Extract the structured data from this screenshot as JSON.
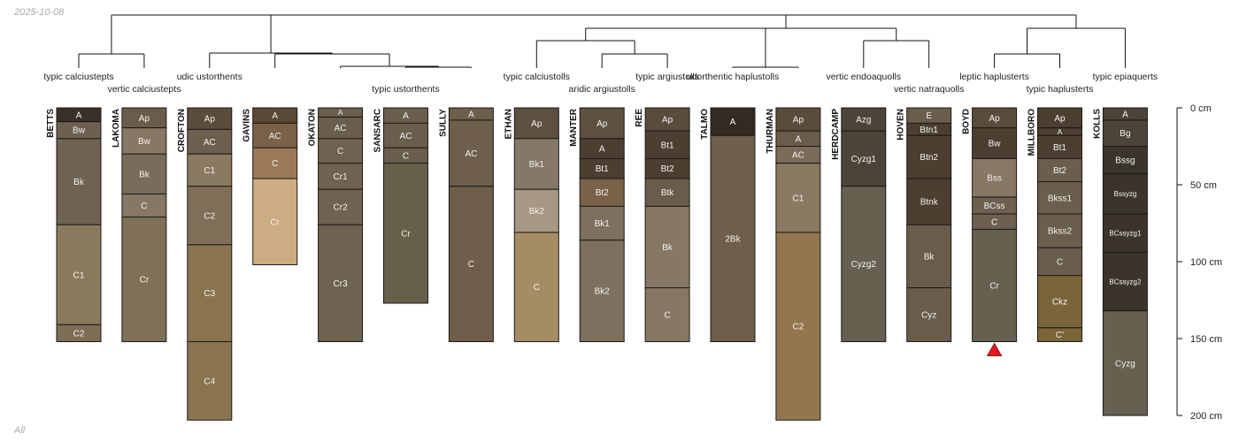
{
  "header": {
    "date": "2025-10-08"
  },
  "footer": {
    "label": "All"
  },
  "depth_axis": {
    "unit": "cm",
    "max": 200,
    "ticks": [
      {
        "value": 0,
        "label": "0 cm"
      },
      {
        "value": 50,
        "label": "50 cm"
      },
      {
        "value": 100,
        "label": "100 cm"
      },
      {
        "value": 150,
        "label": "150 cm"
      },
      {
        "value": 200,
        "label": "200 cm"
      }
    ]
  },
  "profiles": [
    {
      "name": "BETTS",
      "horizons": [
        {
          "name": "A",
          "top": 0,
          "bottom": 9,
          "color": "#3a3027"
        },
        {
          "name": "Bw",
          "top": 9,
          "bottom": 20,
          "color": "#6e6050"
        },
        {
          "name": "Bk",
          "top": 20,
          "bottom": 76,
          "color": "#6e6250"
        },
        {
          "name": "C1",
          "top": 76,
          "bottom": 141,
          "color": "#8a7a5e"
        },
        {
          "name": "C2",
          "top": 141,
          "bottom": 152,
          "color": "#7e6e55"
        }
      ]
    },
    {
      "name": "LAKOMA",
      "horizons": [
        {
          "name": "Ap",
          "top": 0,
          "bottom": 13,
          "color": "#6a5c4a"
        },
        {
          "name": "Bw",
          "top": 13,
          "bottom": 30,
          "color": "#867865"
        },
        {
          "name": "Bk",
          "top": 30,
          "bottom": 56,
          "color": "#7a6c5a"
        },
        {
          "name": "C",
          "top": 56,
          "bottom": 71,
          "color": "#867865"
        },
        {
          "name": "Cr",
          "top": 71,
          "bottom": 152,
          "color": "#807058"
        }
      ]
    },
    {
      "name": "CROFTON",
      "horizons": [
        {
          "name": "Ap",
          "top": 0,
          "bottom": 14,
          "color": "#5a4c3c"
        },
        {
          "name": "AC",
          "top": 14,
          "bottom": 30,
          "color": "#6e604e"
        },
        {
          "name": "C1",
          "top": 30,
          "bottom": 51,
          "color": "#8a7a60"
        },
        {
          "name": "C2",
          "top": 51,
          "bottom": 89,
          "color": "#806e58"
        },
        {
          "name": "C3",
          "top": 89,
          "bottom": 152,
          "color": "#8a7450"
        },
        {
          "name": "C4",
          "top": 152,
          "bottom": 203,
          "color": "#8a7450"
        }
      ]
    },
    {
      "name": "GAVINS",
      "horizons": [
        {
          "name": "A",
          "top": 0,
          "bottom": 10,
          "color": "#5a4834"
        },
        {
          "name": "AC",
          "top": 10,
          "bottom": 26,
          "color": "#7a6248"
        },
        {
          "name": "C",
          "top": 26,
          "bottom": 46,
          "color": "#9a7a58"
        },
        {
          "name": "Cr",
          "top": 46,
          "bottom": 102,
          "color": "#ccac82"
        }
      ]
    },
    {
      "name": "OKATON",
      "horizons": [
        {
          "name": "A",
          "top": 0,
          "bottom": 6,
          "color": "#6a5e4e"
        },
        {
          "name": "AC",
          "top": 6,
          "bottom": 20,
          "color": "#6a5e4e"
        },
        {
          "name": "C",
          "top": 20,
          "bottom": 36,
          "color": "#6e6250"
        },
        {
          "name": "Cr1",
          "top": 36,
          "bottom": 53,
          "color": "#6e6250"
        },
        {
          "name": "Cr2",
          "top": 53,
          "bottom": 76,
          "color": "#6e6250"
        },
        {
          "name": "Cr3",
          "top": 76,
          "bottom": 152,
          "color": "#6e6250"
        }
      ]
    },
    {
      "name": "SANSARC",
      "horizons": [
        {
          "name": "A",
          "top": 0,
          "bottom": 10,
          "color": "#6a5e4c"
        },
        {
          "name": "AC",
          "top": 10,
          "bottom": 26,
          "color": "#6a5e4c"
        },
        {
          "name": "C",
          "top": 26,
          "bottom": 36,
          "color": "#6a5e4c"
        },
        {
          "name": "Cr",
          "top": 36,
          "bottom": 127,
          "color": "#666048"
        }
      ]
    },
    {
      "name": "SULLY",
      "horizons": [
        {
          "name": "A",
          "top": 0,
          "bottom": 8,
          "color": "#6e5e4c"
        },
        {
          "name": "AC",
          "top": 8,
          "bottom": 51,
          "color": "#6e5e4c"
        },
        {
          "name": "C",
          "top": 51,
          "bottom": 152,
          "color": "#6e5e4a"
        }
      ]
    },
    {
      "name": "ETHAN",
      "horizons": [
        {
          "name": "Ap",
          "top": 0,
          "bottom": 20,
          "color": "#5e5040"
        },
        {
          "name": "Bk1",
          "top": 20,
          "bottom": 53,
          "color": "#867866"
        },
        {
          "name": "Bk2",
          "top": 53,
          "bottom": 81,
          "color": "#a69882"
        },
        {
          "name": "C",
          "top": 81,
          "bottom": 152,
          "color": "#a68c64"
        }
      ]
    },
    {
      "name": "MANTER",
      "horizons": [
        {
          "name": "Ap",
          "top": 0,
          "bottom": 20,
          "color": "#5e5040"
        },
        {
          "name": "A",
          "top": 20,
          "bottom": 33,
          "color": "#4c3e30"
        },
        {
          "name": "Bt1",
          "top": 33,
          "bottom": 46,
          "color": "#4c3e30"
        },
        {
          "name": "Bt2",
          "top": 46,
          "bottom": 64,
          "color": "#7a6248"
        },
        {
          "name": "Bk1",
          "top": 64,
          "bottom": 86,
          "color": "#7e705e"
        },
        {
          "name": "Bk2",
          "top": 86,
          "bottom": 152,
          "color": "#7e705e"
        }
      ]
    },
    {
      "name": "REE",
      "horizons": [
        {
          "name": "Ap",
          "top": 0,
          "bottom": 15,
          "color": "#5a4c3c"
        },
        {
          "name": "Bt1",
          "top": 15,
          "bottom": 33,
          "color": "#4c3e30"
        },
        {
          "name": "Bt2",
          "top": 33,
          "bottom": 46,
          "color": "#4c3e30"
        },
        {
          "name": "Btk",
          "top": 46,
          "bottom": 64,
          "color": "#6a5c4a"
        },
        {
          "name": "Bk",
          "top": 64,
          "bottom": 117,
          "color": "#867865"
        },
        {
          "name": "C",
          "top": 117,
          "bottom": 152,
          "color": "#867865"
        }
      ]
    },
    {
      "name": "TALMO",
      "horizons": [
        {
          "name": "A",
          "top": 0,
          "bottom": 18,
          "color": "#332a22"
        },
        {
          "name": "2Bk",
          "top": 18,
          "bottom": 152,
          "color": "#6e5e4a"
        }
      ]
    },
    {
      "name": "THURMAN",
      "horizons": [
        {
          "name": "Ap",
          "top": 0,
          "bottom": 15,
          "color": "#5a4c3c"
        },
        {
          "name": "A",
          "top": 15,
          "bottom": 25,
          "color": "#6a5c4a"
        },
        {
          "name": "AC",
          "top": 25,
          "bottom": 36,
          "color": "#7a6c58"
        },
        {
          "name": "C1",
          "top": 36,
          "bottom": 81,
          "color": "#8a7a62"
        },
        {
          "name": "C2",
          "top": 81,
          "bottom": 203,
          "color": "#94764e"
        }
      ]
    },
    {
      "name": "HERDCAMP",
      "horizons": [
        {
          "name": "Azg",
          "top": 0,
          "bottom": 15,
          "color": "#4c4438"
        },
        {
          "name": "Cyzg1",
          "top": 15,
          "bottom": 51,
          "color": "#4c4438"
        },
        {
          "name": "Cyzg2",
          "top": 51,
          "bottom": 152,
          "color": "#666050"
        }
      ]
    },
    {
      "name": "HOVEN",
      "horizons": [
        {
          "name": "E",
          "top": 0,
          "bottom": 10,
          "color": "#6a5e4c"
        },
        {
          "name": "Btn1",
          "top": 10,
          "bottom": 18,
          "color": "#4c3e30"
        },
        {
          "name": "Btn2",
          "top": 18,
          "bottom": 46,
          "color": "#4c3e30"
        },
        {
          "name": "Btnk",
          "top": 46,
          "bottom": 76,
          "color": "#4c3e30"
        },
        {
          "name": "Bk",
          "top": 76,
          "bottom": 117,
          "color": "#6a5c4a"
        },
        {
          "name": "Cyz",
          "top": 117,
          "bottom": 152,
          "color": "#6a5c4a"
        }
      ]
    },
    {
      "name": "BOYD",
      "horizons": [
        {
          "name": "Ap",
          "top": 0,
          "bottom": 13,
          "color": "#5a4c3c"
        },
        {
          "name": "Bw",
          "top": 13,
          "bottom": 33,
          "color": "#4c3e30"
        },
        {
          "name": "Bss",
          "top": 33,
          "bottom": 58,
          "color": "#867865"
        },
        {
          "name": "BCss",
          "top": 58,
          "bottom": 69,
          "color": "#6e6050"
        },
        {
          "name": "C",
          "top": 69,
          "bottom": 79,
          "color": "#6e6050"
        },
        {
          "name": "Cr",
          "top": 79,
          "bottom": 152,
          "color": "#666050"
        }
      ]
    },
    {
      "name": "MILLBORO",
      "horizons": [
        {
          "name": "Ap",
          "top": 0,
          "bottom": 13,
          "color": "#4c3e30"
        },
        {
          "name": "A",
          "top": 13,
          "bottom": 18,
          "color": "#4c3e30"
        },
        {
          "name": "Bt1",
          "top": 18,
          "bottom": 33,
          "color": "#4c3e30"
        },
        {
          "name": "Bt2",
          "top": 33,
          "bottom": 48,
          "color": "#6a5e4c"
        },
        {
          "name": "Bkss1",
          "top": 48,
          "bottom": 69,
          "color": "#6a5e4c"
        },
        {
          "name": "Bkss2",
          "top": 69,
          "bottom": 91,
          "color": "#6a5e4c"
        },
        {
          "name": "C",
          "top": 91,
          "bottom": 109,
          "color": "#6a5e4c"
        },
        {
          "name": "Ckz",
          "top": 109,
          "bottom": 143,
          "color": "#7a6438"
        },
        {
          "name": "C'",
          "top": 143,
          "bottom": 152,
          "color": "#7a6438"
        }
      ]
    },
    {
      "name": "KOLLS",
      "horizons": [
        {
          "name": "A",
          "top": 0,
          "bottom": 8,
          "color": "#4c4438"
        },
        {
          "name": "Bg",
          "top": 8,
          "bottom": 25,
          "color": "#4c4438"
        },
        {
          "name": "Bssg",
          "top": 25,
          "bottom": 43,
          "color": "#3a342c"
        },
        {
          "name": "Bssyzg",
          "top": 43,
          "bottom": 69,
          "color": "#3a342c"
        },
        {
          "name": "BCssyzg1",
          "top": 69,
          "bottom": 94,
          "color": "#3a342c"
        },
        {
          "name": "BCssyzg2",
          "top": 94,
          "bottom": 132,
          "color": "#3a342c"
        },
        {
          "name": "Cyzg",
          "top": 132,
          "bottom": 200,
          "color": "#666050"
        }
      ]
    }
  ],
  "taxa": [
    {
      "label": "typic calciustepts",
      "profile": 0,
      "row": 0
    },
    {
      "label": "vertic calciustepts",
      "profile": 1,
      "row": 1
    },
    {
      "label": "udic ustorthents",
      "profile": 2,
      "row": 0
    },
    {
      "label": "typic ustorthents",
      "profile": 5,
      "row": 1
    },
    {
      "label": "typic calciustolls",
      "profile": 7,
      "row": 0
    },
    {
      "label": "aridic argiustolls",
      "profile": 8,
      "row": 1
    },
    {
      "label": "typic argiustolls",
      "profile": 9,
      "row": 0
    },
    {
      "label": "udorthentic haplustolls",
      "profile": 10,
      "row": 0
    },
    {
      "label": "vertic endoaquolls",
      "profile": 12,
      "row": 0
    },
    {
      "label": "vertic natraquolls",
      "profile": 13,
      "row": 1
    },
    {
      "label": "leptic haplusterts",
      "profile": 14,
      "row": 0
    },
    {
      "label": "typic haplusterts",
      "profile": 15,
      "row": 1
    },
    {
      "label": "typic epiaquerts",
      "profile": 16,
      "row": 0
    }
  ],
  "marker": {
    "profile": 14,
    "color": "#e8161c"
  }
}
